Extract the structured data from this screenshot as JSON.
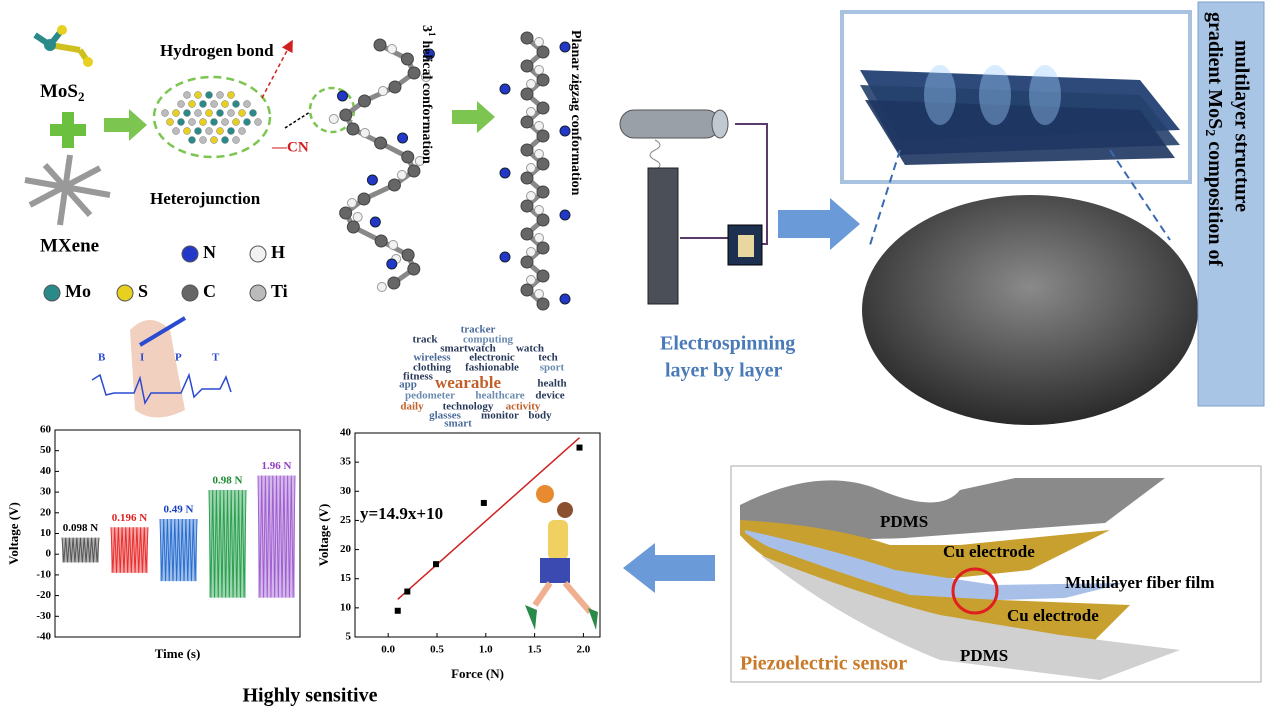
{
  "chart_data": [
    {
      "type": "range",
      "x_label": "Time (s)",
      "y_label": "Voltage (V)",
      "categories": [
        "0.098 N",
        "0.196 N",
        "0.49 N",
        "0.98 N",
        "1.96 N"
      ],
      "colors": [
        "#555555",
        "#e83030",
        "#2a6fd0",
        "#2aa050",
        "#a060d0"
      ],
      "label_colors": [
        "#000000",
        "#e02020",
        "#1a40c0",
        "#1a8a30",
        "#9040c0"
      ],
      "high": [
        8,
        13,
        17,
        31,
        38
      ],
      "low": [
        -4,
        -9,
        -13,
        -21,
        -21
      ],
      "ylim": [
        -40,
        60
      ],
      "yticks": [
        -40,
        -30,
        -20,
        -10,
        0,
        10,
        20,
        30,
        40,
        50,
        60
      ]
    },
    {
      "type": "scatter",
      "x_label": "Force (N)",
      "y_label": "Voltage (V)",
      "x": [
        0.098,
        0.196,
        0.49,
        0.98,
        1.96
      ],
      "y": [
        9.5,
        12.8,
        17.5,
        28,
        37.5
      ],
      "color": "#000000",
      "fit": {
        "label": "y=14.9x+10",
        "slope": 14.9,
        "intercept": 10,
        "color": "#d02020"
      },
      "xlim": [
        -0.34,
        2.17
      ],
      "xticks": [
        {
          "value": 0,
          "label": "0.0"
        },
        0.5,
        {
          "value": 1,
          "label": "1.0"
        },
        1.5,
        {
          "value": 2,
          "label": "2.0"
        }
      ],
      "ylim": [
        5,
        40
      ],
      "yticks": [
        5,
        10,
        15,
        20,
        25,
        30,
        35,
        40
      ]
    }
  ],
  "molecules": {
    "mos2": {
      "base": "MoS",
      "sub": "2"
    },
    "mxene": "MXene",
    "hydrogen_bond": "Hydrogen bond",
    "heterojunction": "Heterojunction",
    "cn": "—CN",
    "helical": {
      "base": "3",
      "sup": "1",
      "rest": "helical conformation"
    },
    "zigzag": "Planar zigzag conformation",
    "atoms": [
      {
        "symbol": "N",
        "color": "#2338c8"
      },
      {
        "symbol": "H",
        "color": "#f2f2f2"
      },
      {
        "symbol": "Mo",
        "color": "#2a8a8a"
      },
      {
        "symbol": "S",
        "color": "#e8d020"
      },
      {
        "symbol": "C",
        "color": "#666666"
      },
      {
        "symbol": "Ti",
        "color": "#bbbbbb"
      }
    ]
  },
  "electrospinning": [
    "Electrospinning",
    "layer by layer"
  ],
  "structure": {
    "line1": {
      "pre": "gradient MoS",
      "sub": "2",
      "post": "composition of"
    },
    "line2": "multilayer structure"
  },
  "pulse": [
    "B",
    "I",
    "P",
    "T"
  ],
  "word_cloud": [
    "tracker",
    "track",
    "computing",
    "smartwatch",
    "watch",
    "wireless",
    "electronic",
    "tech",
    "clothing",
    "fashionable",
    "sport",
    "fitness",
    "app",
    "wearable",
    "health",
    "pedometer",
    "healthcare",
    "device",
    "daily",
    "technology",
    "activity",
    "glasses",
    "monitor",
    "body",
    "smart"
  ],
  "summary": "Highly sensitive",
  "sensor": {
    "title": "Piezoelectric sensor",
    "layers": [
      "PDMS",
      "Cu electrode",
      "Multilayer fiber film",
      "Cu electrode",
      "PDMS"
    ]
  }
}
